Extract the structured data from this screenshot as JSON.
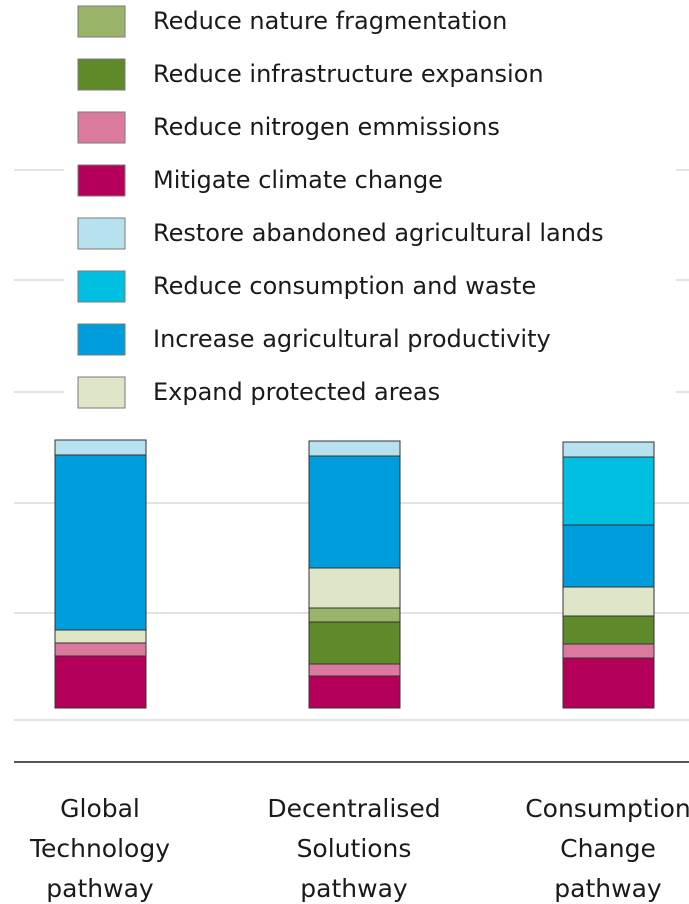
{
  "chart_data": {
    "type": "bar",
    "stacked": true,
    "title": "",
    "xlabel": "",
    "ylabel": "",
    "grid": true,
    "legend_position": "top",
    "categories": [
      [
        "Global",
        "Technology",
        "pathway"
      ],
      [
        "Decentralised",
        "Solutions",
        "pathway"
      ],
      [
        "Consumption",
        "Change",
        "pathway"
      ]
    ],
    "series": [
      {
        "name": "Mitigate climate change",
        "color": "#b5005b",
        "values": [
          52,
          32,
          50
        ]
      },
      {
        "name": "Reduce nitrogen emmissions",
        "color": "#db7a9e",
        "values": [
          13,
          12,
          14
        ]
      },
      {
        "name": "Reduce infrastructure expansion",
        "color": "#5e8a2a",
        "values": [
          0,
          42,
          28
        ]
      },
      {
        "name": "Reduce nature fragmentation",
        "color": "#9ab56a",
        "values": [
          0,
          14,
          0
        ]
      },
      {
        "name": "Expand protected areas",
        "color": "#dfe5c7",
        "values": [
          13,
          40,
          29
        ]
      },
      {
        "name": "Increase agricultural productivity",
        "color": "#009ddc",
        "values": [
          175,
          112,
          62
        ]
      },
      {
        "name": "Reduce consumption and waste",
        "color": "#00bfe0",
        "values": [
          0,
          0,
          68
        ]
      },
      {
        "name": "Restore abandoned agricultural lands",
        "color": "#b7e1ee",
        "values": [
          15,
          15,
          15
        ]
      }
    ],
    "legend_order": [
      "Reduce nature fragmentation",
      "Reduce infrastructure expansion",
      "Reduce nitrogen emmissions",
      "Mitigate climate change",
      "Restore abandoned agricultural lands",
      "Reduce consumption and waste",
      "Increase agricultural productivity",
      "Expand protected areas"
    ]
  }
}
